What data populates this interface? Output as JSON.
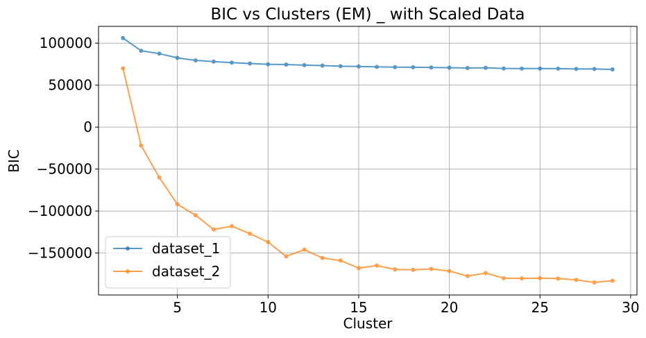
{
  "chart_data": {
    "type": "line",
    "title": "BIC vs Clusters (EM) _ with Scaled Data",
    "xlabel": "Cluster",
    "ylabel": "BIC",
    "xlim": [
      0.65,
      30.35
    ],
    "ylim": [
      -200000,
      120000
    ],
    "xticks": [
      5,
      10,
      15,
      20,
      25,
      30
    ],
    "yticks": [
      -150000,
      -100000,
      -50000,
      0,
      50000,
      100000
    ],
    "grid": true,
    "legend_position": "lower-left",
    "x": [
      2,
      3,
      4,
      5,
      6,
      7,
      8,
      9,
      10,
      11,
      12,
      13,
      14,
      15,
      16,
      17,
      18,
      19,
      20,
      21,
      22,
      23,
      24,
      25,
      26,
      27,
      28,
      29
    ],
    "series": [
      {
        "name": "dataset_1",
        "color": "#1f77b4",
        "values": [
          106000,
          91000,
          87500,
          82500,
          79500,
          78000,
          76800,
          75800,
          74800,
          74500,
          73800,
          73300,
          72600,
          72200,
          71700,
          71400,
          71300,
          71000,
          70800,
          70400,
          70600,
          69900,
          69800,
          69800,
          69700,
          69300,
          69300,
          68700
        ]
      },
      {
        "name": "dataset_2",
        "color": "#ff7f0e",
        "values": [
          70000,
          -22000,
          -60000,
          -92000,
          -105000,
          -122000,
          -118000,
          -127000,
          -137000,
          -154000,
          -146000,
          -156000,
          -159000,
          -168000,
          -165000,
          -169500,
          -170000,
          -169000,
          -171500,
          -177500,
          -174000,
          -180000,
          -180300,
          -180000,
          -180500,
          -182000,
          -185000,
          -183000
        ]
      }
    ]
  }
}
